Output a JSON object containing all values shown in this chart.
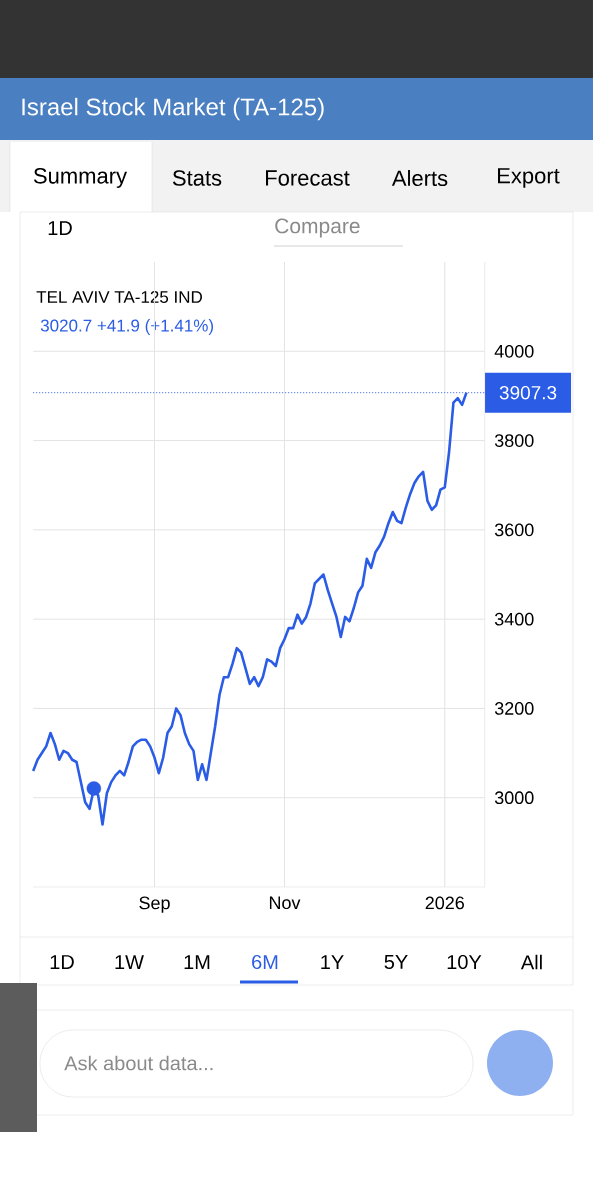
{
  "chart_data": {
    "type": "line",
    "title": "Israel Stock Market (TA-125)",
    "subtitle": "TEL AVIV TA-125 IND",
    "annotations": [
      "3020.7 +41.9 (+1.41%)",
      "Summary",
      "Stats",
      "Forecast",
      "Alerts",
      "Export",
      "1D",
      "Compare",
      "1D",
      "1W",
      "1M",
      "6M",
      "1Y",
      "5Y",
      "10Y",
      "All",
      "Ask about data..."
    ],
    "categories": [
      null,
      null,
      null,
      null,
      null,
      null,
      null,
      null,
      null,
      null,
      null,
      null,
      null,
      null,
      null,
      null,
      null,
      null,
      null,
      null,
      null,
      null,
      null,
      null,
      null,
      null,
      null,
      null,
      "Sep",
      null,
      null,
      null,
      null,
      null,
      null,
      null,
      null,
      null,
      null,
      null,
      null,
      null,
      null,
      null,
      null,
      null,
      null,
      null,
      null,
      null,
      null,
      null,
      null,
      null,
      null,
      null,
      null,
      null,
      "Nov",
      null,
      null,
      null,
      null,
      null,
      null,
      null,
      null,
      null,
      null,
      null,
      null,
      null,
      null,
      null,
      null,
      null,
      null,
      null,
      null,
      null,
      null,
      null,
      null,
      null,
      null,
      null,
      null,
      null,
      null,
      null,
      null,
      null,
      null,
      null,
      null,
      "2026",
      null,
      null,
      null,
      null,
      null
    ],
    "series": [
      {
        "color": "#2b5ce6",
        "marker": "none",
        "values": [
          3060,
          3085,
          3100,
          3115,
          3145,
          3120,
          3085,
          3105,
          3100,
          3085,
          3080,
          3035,
          2990,
          2975,
          3020,
          3005,
          2940,
          3010,
          3035,
          3050,
          3060,
          3050,
          3080,
          3115,
          3125,
          3130,
          3130,
          3115,
          3090,
          3055,
          3090,
          3145,
          3160,
          3200,
          3185,
          3145,
          3120,
          3105,
          3040,
          3075,
          3040,
          3100,
          3160,
          3230,
          3270,
          3270,
          3300,
          3335,
          3325,
          3290,
          3255,
          3270,
          3250,
          3270,
          3310,
          3305,
          3295,
          3335,
          3355,
          3380,
          3380,
          3410,
          3390,
          3405,
          3435,
          3480,
          3490,
          3500,
          3465,
          3435,
          3405,
          3360,
          3405,
          3395,
          3425,
          3460,
          3475,
          3535,
          3515,
          3550,
          3565,
          3585,
          3615,
          3640,
          3620,
          3615,
          3650,
          3680,
          3705,
          3720,
          3730,
          3665,
          3645,
          3655,
          3690,
          3695,
          3775,
          3885,
          3895,
          3880,
          3907.3
        ]
      },
      {
        "type": "scatter",
        "color": "#2b5ce6",
        "marker": "circle",
        "values": [
          null,
          null,
          null,
          null,
          null,
          null,
          null,
          null,
          null,
          null,
          null,
          null,
          null,
          null,
          3020.7,
          null,
          null,
          null,
          null,
          null,
          null,
          null,
          null,
          null,
          null,
          null,
          null,
          null,
          null,
          null,
          null,
          null,
          null,
          null,
          null,
          null,
          null,
          null,
          null,
          null,
          null,
          null,
          null,
          null,
          null,
          null,
          null,
          null,
          null,
          null,
          null,
          null,
          null,
          null,
          null,
          null,
          null,
          null,
          null,
          null,
          null,
          null,
          null,
          null,
          null,
          null,
          null,
          null,
          null,
          null,
          null,
          null,
          null,
          null,
          null,
          null,
          null,
          null,
          null,
          null,
          null,
          null,
          null,
          null,
          null,
          null,
          null,
          null,
          null,
          null,
          null,
          null,
          null,
          null,
          null,
          null,
          null,
          null,
          null,
          null,
          null
        ]
      }
    ],
    "ylim": [
      2800,
      4200
    ],
    "yticks": [
      3000,
      3200,
      3400,
      3600,
      3800,
      4000
    ],
    "grid": true,
    "ref_lines": [
      {
        "axis": "y",
        "value": 3907.3,
        "label": "3907.3",
        "color": "#2b5ce6",
        "line_style": "dotted"
      }
    ]
  }
}
